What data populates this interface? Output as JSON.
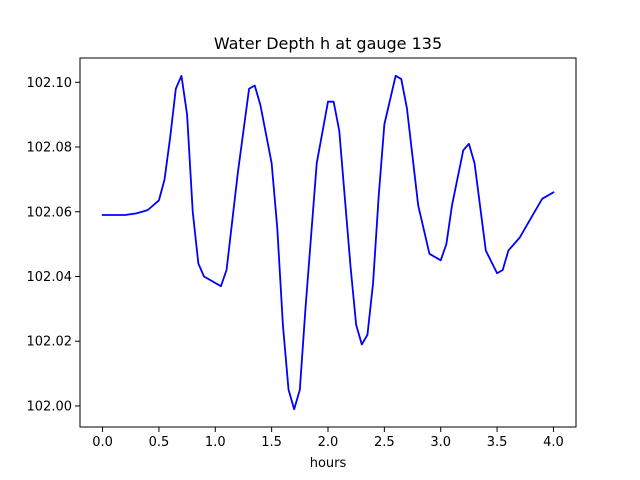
{
  "chart_data": {
    "type": "line",
    "title": "Water Depth h at gauge 135",
    "xlabel": "hours",
    "ylabel": "",
    "xlim": [
      -0.2,
      4.2
    ],
    "ylim": [
      101.9935,
      102.1075
    ],
    "xticks": [
      0.0,
      0.5,
      1.0,
      1.5,
      2.0,
      2.5,
      3.0,
      3.5,
      4.0
    ],
    "xtick_labels": [
      "0.0",
      "0.5",
      "1.0",
      "1.5",
      "2.0",
      "2.5",
      "3.0",
      "3.5",
      "4.0"
    ],
    "yticks": [
      102.0,
      102.02,
      102.04,
      102.06,
      102.08,
      102.1
    ],
    "ytick_labels": [
      "102.00",
      "102.02",
      "102.04",
      "102.06",
      "102.08",
      "102.10"
    ],
    "grid": false,
    "series": [
      {
        "color": "#0000ff",
        "x": [
          0.0,
          0.1,
          0.2,
          0.3,
          0.4,
          0.5,
          0.55,
          0.6,
          0.65,
          0.7,
          0.75,
          0.8,
          0.85,
          0.9,
          1.0,
          1.05,
          1.1,
          1.2,
          1.3,
          1.35,
          1.4,
          1.5,
          1.55,
          1.6,
          1.65,
          1.7,
          1.75,
          1.8,
          1.9,
          2.0,
          2.05,
          2.1,
          2.2,
          2.25,
          2.3,
          2.35,
          2.4,
          2.45,
          2.5,
          2.6,
          2.65,
          2.7,
          2.8,
          2.9,
          3.0,
          3.05,
          3.1,
          3.2,
          3.25,
          3.3,
          3.4,
          3.5,
          3.55,
          3.6,
          3.65,
          3.7,
          3.8,
          3.9,
          4.0
        ],
        "y": [
          102.059,
          102.059,
          102.059,
          102.0595,
          102.0605,
          102.0635,
          102.07,
          102.083,
          102.098,
          102.102,
          102.09,
          102.06,
          102.044,
          102.04,
          102.038,
          102.037,
          102.042,
          102.072,
          102.098,
          102.099,
          102.093,
          102.075,
          102.055,
          102.025,
          102.005,
          101.999,
          102.005,
          102.03,
          102.075,
          102.094,
          102.094,
          102.085,
          102.043,
          102.025,
          102.019,
          102.022,
          102.038,
          102.065,
          102.087,
          102.102,
          102.101,
          102.092,
          102.062,
          102.047,
          102.045,
          102.05,
          102.062,
          102.079,
          102.081,
          102.075,
          102.048,
          102.041,
          102.042,
          102.048,
          102.05,
          102.052,
          102.058,
          102.064,
          102.066
        ]
      }
    ]
  }
}
